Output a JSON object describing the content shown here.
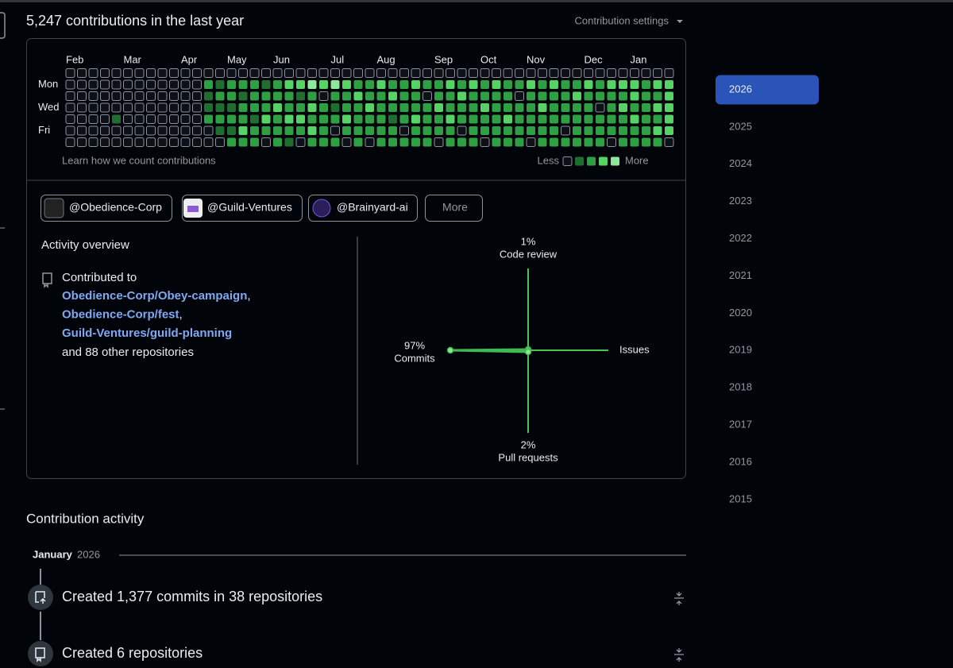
{
  "header": {
    "title": "5,247 contributions in the last year",
    "settings": "Contribution settings"
  },
  "calendar": {
    "month_labels": [
      "Feb",
      null,
      null,
      null,
      null,
      "Mar",
      null,
      null,
      null,
      null,
      "Apr",
      null,
      null,
      null,
      "May",
      null,
      null,
      null,
      "Jun",
      null,
      null,
      null,
      null,
      "Jul",
      null,
      null,
      null,
      "Aug",
      null,
      null,
      null,
      null,
      "Sep",
      null,
      null,
      null,
      "Oct",
      null,
      null,
      null,
      "Nov",
      null,
      null,
      null,
      null,
      "Dec",
      null,
      null,
      null,
      "Jan",
      null,
      null,
      null
    ],
    "day_labels": [
      null,
      "Mon",
      null,
      "Wed",
      null,
      "Fri",
      null
    ],
    "weeks": [
      [
        0,
        0,
        0,
        0,
        0,
        0,
        0
      ],
      [
        0,
        0,
        0,
        0,
        0,
        0,
        0
      ],
      [
        0,
        0,
        0,
        0,
        0,
        0,
        0
      ],
      [
        0,
        0,
        0,
        0,
        0,
        0,
        0
      ],
      [
        0,
        0,
        0,
        0,
        1,
        0,
        0
      ],
      [
        0,
        0,
        0,
        0,
        0,
        0,
        0
      ],
      [
        0,
        0,
        0,
        0,
        0,
        0,
        0
      ],
      [
        0,
        0,
        0,
        0,
        0,
        0,
        0
      ],
      [
        0,
        0,
        0,
        0,
        0,
        0,
        0
      ],
      [
        0,
        0,
        0,
        0,
        0,
        0,
        0
      ],
      [
        0,
        0,
        0,
        0,
        0,
        0,
        0
      ],
      [
        0,
        0,
        0,
        0,
        0,
        0,
        0
      ],
      [
        0,
        2,
        1,
        1,
        2,
        0,
        0
      ],
      [
        0,
        1,
        2,
        1,
        2,
        1,
        0
      ],
      [
        0,
        2,
        2,
        1,
        2,
        1,
        2
      ],
      [
        0,
        2,
        1,
        2,
        2,
        3,
        2
      ],
      [
        0,
        2,
        2,
        2,
        1,
        2,
        2
      ],
      [
        0,
        1,
        2,
        2,
        3,
        2,
        0
      ],
      [
        0,
        2,
        2,
        3,
        2,
        2,
        2
      ],
      [
        0,
        3,
        2,
        2,
        3,
        2,
        1
      ],
      [
        0,
        3,
        1,
        2,
        3,
        2,
        0
      ],
      [
        0,
        4,
        2,
        3,
        2,
        3,
        2
      ],
      [
        0,
        3,
        0,
        2,
        2,
        2,
        2
      ],
      [
        0,
        4,
        2,
        1,
        2,
        0,
        2
      ],
      [
        0,
        3,
        2,
        2,
        3,
        2,
        0
      ],
      [
        0,
        2,
        3,
        2,
        2,
        2,
        2
      ],
      [
        0,
        2,
        2,
        3,
        2,
        2,
        0
      ],
      [
        0,
        3,
        2,
        2,
        2,
        2,
        2
      ],
      [
        0,
        2,
        3,
        2,
        1,
        2,
        2
      ],
      [
        0,
        2,
        2,
        2,
        2,
        0,
        2
      ],
      [
        0,
        3,
        2,
        2,
        3,
        2,
        2
      ],
      [
        0,
        2,
        0,
        2,
        2,
        2,
        2
      ],
      [
        0,
        2,
        2,
        3,
        2,
        2,
        0
      ],
      [
        0,
        3,
        2,
        2,
        3,
        2,
        2
      ],
      [
        0,
        2,
        3,
        2,
        2,
        0,
        2
      ],
      [
        0,
        3,
        2,
        2,
        2,
        2,
        2
      ],
      [
        0,
        2,
        2,
        3,
        2,
        2,
        0
      ],
      [
        0,
        3,
        2,
        2,
        2,
        2,
        2
      ],
      [
        0,
        2,
        2,
        2,
        3,
        2,
        2
      ],
      [
        0,
        2,
        0,
        2,
        2,
        2,
        2
      ],
      [
        0,
        3,
        2,
        2,
        2,
        2,
        0
      ],
      [
        0,
        2,
        2,
        3,
        2,
        2,
        2
      ],
      [
        0,
        3,
        2,
        2,
        2,
        2,
        2
      ],
      [
        0,
        2,
        2,
        2,
        2,
        0,
        2
      ],
      [
        0,
        2,
        3,
        2,
        2,
        2,
        2
      ],
      [
        0,
        3,
        2,
        2,
        2,
        2,
        2
      ],
      [
        0,
        2,
        2,
        0,
        2,
        2,
        2
      ],
      [
        0,
        3,
        2,
        2,
        2,
        2,
        0
      ],
      [
        0,
        3,
        2,
        3,
        2,
        2,
        2
      ],
      [
        0,
        3,
        3,
        2,
        3,
        2,
        2
      ],
      [
        0,
        2,
        2,
        2,
        2,
        2,
        2
      ],
      [
        0,
        3,
        2,
        3,
        2,
        3,
        2
      ],
      [
        0,
        3,
        3,
        3,
        3,
        3,
        0
      ]
    ],
    "level_colors": [
      "#0d1117",
      "#1f6e30",
      "#2ea043",
      "#56d364",
      "#8de89a"
    ],
    "learn": "Learn how we count contributions",
    "legend_less": "Less",
    "legend_more": "More",
    "legend_levels": [
      0,
      1,
      2,
      3,
      4
    ]
  },
  "orgs": [
    "@Obedience-Corp",
    "@Guild-Ventures",
    "@Brainyard-ai"
  ],
  "more_button": "More",
  "activity": {
    "title": "Activity overview",
    "contributed_to": "Contributed to",
    "repos": [
      "Obedience-Corp/Obey-campaign",
      "Obedience-Corp/fest",
      "Guild-Ventures/guild-planning"
    ],
    "separator": ",",
    "other": "and 88 other repositories"
  },
  "radar": {
    "axes": [
      {
        "label": "Code review",
        "value": 1,
        "value_label": "1%"
      },
      {
        "label": "Issues",
        "value": 0
      },
      {
        "label": "Pull requests",
        "value": 2,
        "value_label": "2%"
      },
      {
        "label": "Commits",
        "value": 97,
        "value_label": "97%"
      }
    ],
    "max": 100
  },
  "contribution_activity": {
    "title": "Contribution activity",
    "month": "January",
    "year": "2026",
    "items": [
      "Created 1,377 commits in 38 repositories",
      "Created 6 repositories"
    ]
  },
  "years": {
    "list": [
      "2026",
      "2025",
      "2024",
      "2023",
      "2022",
      "2021",
      "2020",
      "2019",
      "2018",
      "2017",
      "2016",
      "2015"
    ],
    "selected": 0
  }
}
